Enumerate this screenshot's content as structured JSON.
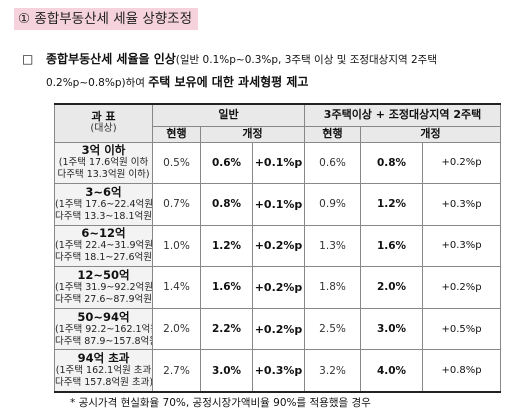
{
  "title": "① 종합부동산세 세율 상향조정",
  "bullet": {
    "mark": "□",
    "part1": "종합부동산세 세율을 인상",
    "part2": "(일반 0.1%p~0.3%p, 3주택 이상 및 조정대상지역 2주택 0.2%p~0.8%p)하여 ",
    "part3": "주택 보유에 대한 과세형평 제고"
  },
  "table": {
    "header": {
      "col1_main": "과 표",
      "col1_sub": "(대상)",
      "group1": "일반",
      "group2": "3주택이상 + 조정대상지역 2주택",
      "current": "현행",
      "revised": "개정"
    },
    "rows": [
      {
        "range": "3억 이하",
        "sub1": "(1주택 17.6억원 이하",
        "sub2": "다주택 13.3억원 이하)",
        "g_cur": "0.5%",
        "g_new": "0.6%",
        "g_inc": "+0.1%p",
        "m_cur": "0.6%",
        "m_new": "0.8%",
        "m_inc": "+0.2%p"
      },
      {
        "range": "3~6억",
        "sub1": "(1주택 17.6~22.4억원",
        "sub2": "다주택 13.3~18.1억원)",
        "g_cur": "0.7%",
        "g_new": "0.8%",
        "g_inc": "+0.1%p",
        "m_cur": "0.9%",
        "m_new": "1.2%",
        "m_inc": "+0.3%p"
      },
      {
        "range": "6~12억",
        "sub1": "(1주택 22.4~31.9억원",
        "sub2": "다주택 18.1~27.6억원)",
        "g_cur": "1.0%",
        "g_new": "1.2%",
        "g_inc": "+0.2%p",
        "m_cur": "1.3%",
        "m_new": "1.6%",
        "m_inc": "+0.3%p"
      },
      {
        "range": "12~50억",
        "sub1": "(1주택 31.9~92.2억원",
        "sub2": "다주택 27.6~87.9억원)",
        "g_cur": "1.4%",
        "g_new": "1.6%",
        "g_inc": "+0.2%p",
        "m_cur": "1.8%",
        "m_new": "2.0%",
        "m_inc": "+0.2%p"
      },
      {
        "range": "50~94억",
        "sub1": "(1주택 92.2~162.1억원",
        "sub2": "다주택 87.9~157.8억원)",
        "g_cur": "2.0%",
        "g_new": "2.2%",
        "g_inc": "+0.2%p",
        "m_cur": "2.5%",
        "m_new": "3.0%",
        "m_inc": "+0.5%p"
      },
      {
        "range": "94억 초과",
        "sub1": "(1주택 162.1억원 초과",
        "sub2": "다주택 157.8억원 초과)",
        "g_cur": "2.7%",
        "g_new": "3.0%",
        "g_inc": "+0.3%p",
        "m_cur": "3.2%",
        "m_new": "4.0%",
        "m_inc": "+0.8%p"
      }
    ]
  },
  "footnote": "* 공시가격 현실화율 70%, 공정시장가액비율 90%를 적용했을 경우"
}
